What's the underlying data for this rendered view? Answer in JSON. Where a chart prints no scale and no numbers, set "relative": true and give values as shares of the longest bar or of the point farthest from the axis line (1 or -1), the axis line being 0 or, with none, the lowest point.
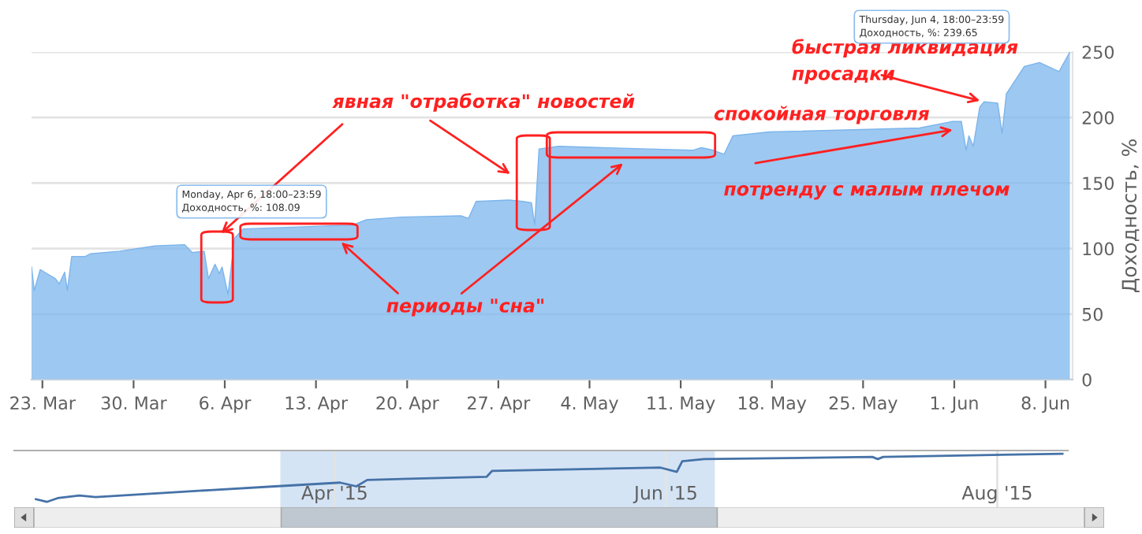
{
  "chart_data": [
    {
      "type": "area",
      "ylabel": "Доходность, %",
      "grid": "y",
      "xlim": [
        "2015-03-22T04:00",
        "2015-06-10T02:00"
      ],
      "ylim": [
        0,
        250
      ],
      "yticks": [
        0,
        50,
        100,
        150,
        200,
        250
      ],
      "xticks": [
        {
          "value": "2015-03-23",
          "label": "23. Mar"
        },
        {
          "value": "2015-03-30",
          "label": "30. Mar"
        },
        {
          "value": "2015-04-06",
          "label": "6. Apr"
        },
        {
          "value": "2015-04-13",
          "label": "13. Apr"
        },
        {
          "value": "2015-04-20",
          "label": "20. Apr"
        },
        {
          "value": "2015-04-27",
          "label": "27. Apr"
        },
        {
          "value": "2015-05-04",
          "label": "4. May"
        },
        {
          "value": "2015-05-11",
          "label": "11. May"
        },
        {
          "value": "2015-05-18",
          "label": "18. May"
        },
        {
          "value": "2015-05-25",
          "label": "25. May"
        },
        {
          "value": "2015-06-01",
          "label": "1. Jun"
        },
        {
          "value": "2015-06-08",
          "label": "8. Jun"
        }
      ],
      "series": [
        {
          "color": "#7cb5ec",
          "x": [
            "2015-03-22T04:00",
            "2015-03-22T09:00",
            "2015-03-22T20:00",
            "2015-03-24T00:00",
            "2015-03-24T07:00",
            "2015-03-24T17:00",
            "2015-03-24T22:00",
            "2015-03-25T06:00",
            "2015-03-26T07:00",
            "2015-03-26T16:00",
            "2015-03-28T23:00",
            "2015-03-31T15:00",
            "2015-04-02T22:00",
            "2015-04-03T12:00",
            "2015-04-04T10:00",
            "2015-04-04T18:00",
            "2015-04-05T06:00",
            "2015-04-05T14:00",
            "2015-04-05T19:00",
            "2015-04-06T06:00",
            "2015-04-06T18:00",
            "2015-04-07T10:00",
            "2015-04-15T20:00",
            "2015-04-16T21:00",
            "2015-04-19T13:00",
            "2015-04-24T03:00",
            "2015-04-24T17:00",
            "2015-04-25T07:00",
            "2015-04-27T20:00",
            "2015-04-28T21:00",
            "2015-04-29T13:00",
            "2015-04-29T19:00",
            "2015-04-30T03:00",
            "2015-05-01T15:00",
            "2015-05-08T13:00",
            "2015-05-11T22:00",
            "2015-05-12T14:00",
            "2015-05-13T12:00",
            "2015-05-14T08:00",
            "2015-05-15T00:00",
            "2015-05-17T19:00",
            "2015-05-29T08:00",
            "2015-05-31T21:00",
            "2015-06-01T13:00",
            "2015-06-01T22:00",
            "2015-06-02T03:00",
            "2015-06-02T11:00",
            "2015-06-02T23:00",
            "2015-06-03T07:00",
            "2015-06-04T08:00",
            "2015-06-04T16:00",
            "2015-06-05T00:00",
            "2015-06-06T09:00",
            "2015-06-07T13:00",
            "2015-06-09T01:00",
            "2015-06-09T21:00"
          ],
          "values": [
            86,
            68,
            84,
            77,
            73,
            82,
            68,
            94,
            94,
            96,
            98,
            102,
            103,
            97,
            98,
            77,
            88,
            81,
            86,
            65,
            108,
            115,
            118,
            122,
            124,
            125,
            123,
            136,
            137,
            136,
            135,
            118,
            176,
            178,
            176,
            175,
            177,
            175,
            172,
            186,
            189,
            192,
            197,
            197,
            175,
            186,
            178,
            208,
            212,
            211,
            188,
            218,
            239,
            242,
            235,
            250
          ]
        }
      ],
      "annotations": [
        "явная \"отработка\" новостей",
        "периоды \"сна\"",
        "спокойная торговля",
        "потренду с малым плечом",
        {
          "text": "быстрая ликвидация\nпросадки",
          "x": "2015-06-03T07:00",
          "y": 212
        },
        "Monday, Apr 6, 18:00–23:59\nДоходность, %: 108.09",
        "Thursday, Jun 4, 18:00–23:59\nДоходность, %: 239.65"
      ]
    },
    {
      "type": "line",
      "relative": true,
      "grid": "x",
      "xlim": [
        "2015-02-01",
        "2015-08-14"
      ],
      "xticks": [
        {
          "value": "2015-04-01",
          "label": "Apr '15"
        },
        {
          "value": "2015-06-01",
          "label": "Jun '15"
        },
        {
          "value": "2015-08-01",
          "label": "Aug '15"
        }
      ],
      "bands": [
        {
          "axis": "x",
          "from": "2015-03-22",
          "to": "2015-06-10",
          "color": "#d5e4f5"
        }
      ],
      "series": [
        {
          "color": "#4572a7",
          "x": [
            "2015-02-05",
            "2015-02-07",
            "2015-02-09",
            "2015-02-13",
            "2015-02-16",
            "2015-03-09",
            "2015-03-21",
            "2015-04-02",
            "2015-04-05",
            "2015-04-07",
            "2015-04-29",
            "2015-04-30",
            "2015-05-31",
            "2015-06-03",
            "2015-06-04",
            "2015-06-08",
            "2015-07-09",
            "2015-07-10",
            "2015-07-11",
            "2015-08-13"
          ],
          "values": [
            0.15,
            0.1,
            0.17,
            0.22,
            0.19,
            0.32,
            0.39,
            0.46,
            0.39,
            0.51,
            0.57,
            0.68,
            0.74,
            0.66,
            0.86,
            0.9,
            0.94,
            0.9,
            0.94,
            1.0
          ]
        }
      ]
    }
  ]
}
